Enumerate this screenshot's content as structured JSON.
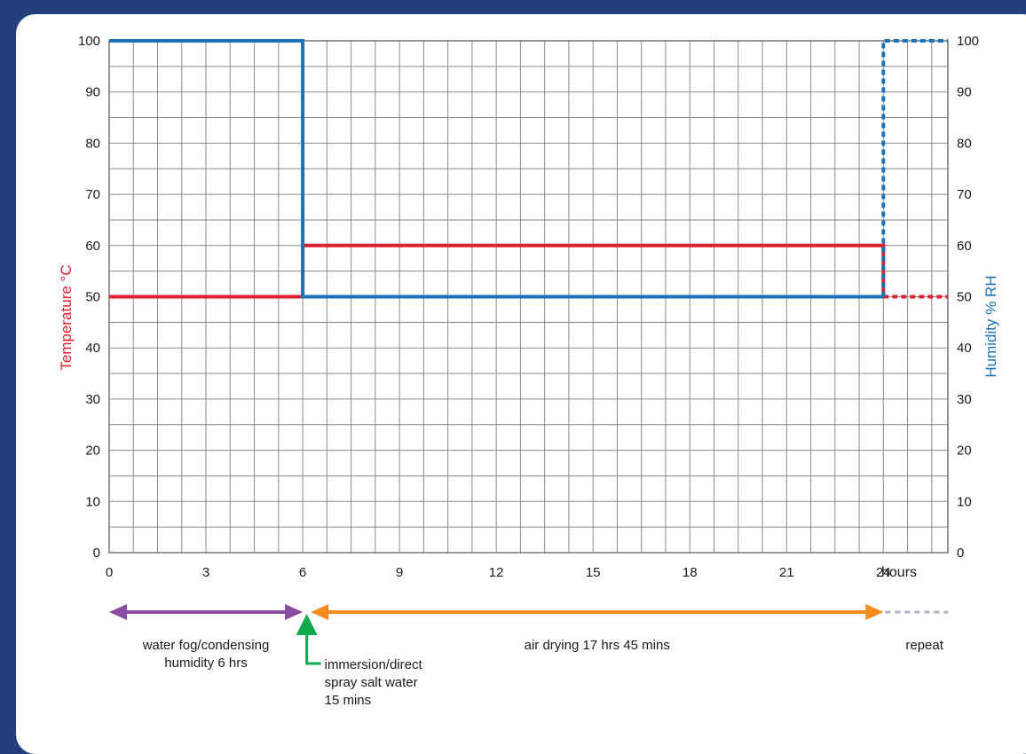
{
  "colors": {
    "background": "#243e7c",
    "card": "#ffffff",
    "temperature": "#e0202e",
    "humidity": "#1a72b8",
    "fog_phase": "#8a4ca0",
    "immersion_phase": "#10a84a",
    "drying_phase": "#f58b1f",
    "repeat": "#a9b4bf",
    "grid": "#8a8a8a"
  },
  "chart_data": {
    "type": "line",
    "x_axis": {
      "range": [
        0,
        26
      ],
      "ticks": [
        0,
        3,
        6,
        9,
        12,
        15,
        18,
        21,
        24
      ],
      "tick_labels": [
        "0",
        "3",
        "6",
        "9",
        "12",
        "15",
        "18",
        "21",
        "24"
      ],
      "unit_label": "hours",
      "minor_step": 0.75
    },
    "y_left": {
      "label": "Temperature °C",
      "range": [
        0,
        100
      ],
      "ticks": [
        0,
        10,
        20,
        30,
        40,
        50,
        60,
        70,
        80,
        90,
        100
      ]
    },
    "y_right": {
      "label": "Humidity % RH",
      "range": [
        0,
        100
      ],
      "ticks": [
        0,
        10,
        20,
        30,
        40,
        50,
        60,
        70,
        80,
        90,
        100
      ]
    },
    "grid": true,
    "series": [
      {
        "name": "Temperature °C",
        "axis": "left",
        "color_key": "temperature",
        "style": "solid",
        "x": [
          0,
          6,
          6,
          24,
          24
        ],
        "y": [
          50,
          50,
          60,
          60,
          50
        ]
      },
      {
        "name": "Temperature °C",
        "axis": "left",
        "color_key": "temperature",
        "style": "dashed",
        "x": [
          24,
          26
        ],
        "y": [
          50,
          50
        ]
      },
      {
        "name": "Humidity % RH",
        "axis": "right",
        "color_key": "humidity",
        "style": "solid",
        "x": [
          0,
          6,
          6,
          24
        ],
        "y": [
          100,
          100,
          50,
          50
        ]
      },
      {
        "name": "Humidity % RH",
        "axis": "right",
        "color_key": "humidity",
        "style": "dashed",
        "x": [
          24,
          24,
          26
        ],
        "y": [
          50,
          100,
          100
        ]
      }
    ],
    "phases": [
      {
        "label_lines": [
          "water fog/condensing",
          "humidity  6 hrs"
        ],
        "start": 0,
        "end": 6,
        "color_key": "fog_phase",
        "style": "double-arrow"
      },
      {
        "label_lines": [
          "immersion/direct",
          "spray salt water",
          "15 mins"
        ],
        "start": 6,
        "end": 6.25,
        "color_key": "immersion_phase",
        "style": "up-arrow"
      },
      {
        "label_lines": [
          "air drying 17 hrs 45 mins"
        ],
        "start": 6.25,
        "end": 24,
        "color_key": "drying_phase",
        "style": "double-arrow"
      },
      {
        "label_lines": [
          "repeat"
        ],
        "start": 24,
        "end": 26,
        "color_key": "repeat",
        "style": "dashed"
      }
    ]
  }
}
